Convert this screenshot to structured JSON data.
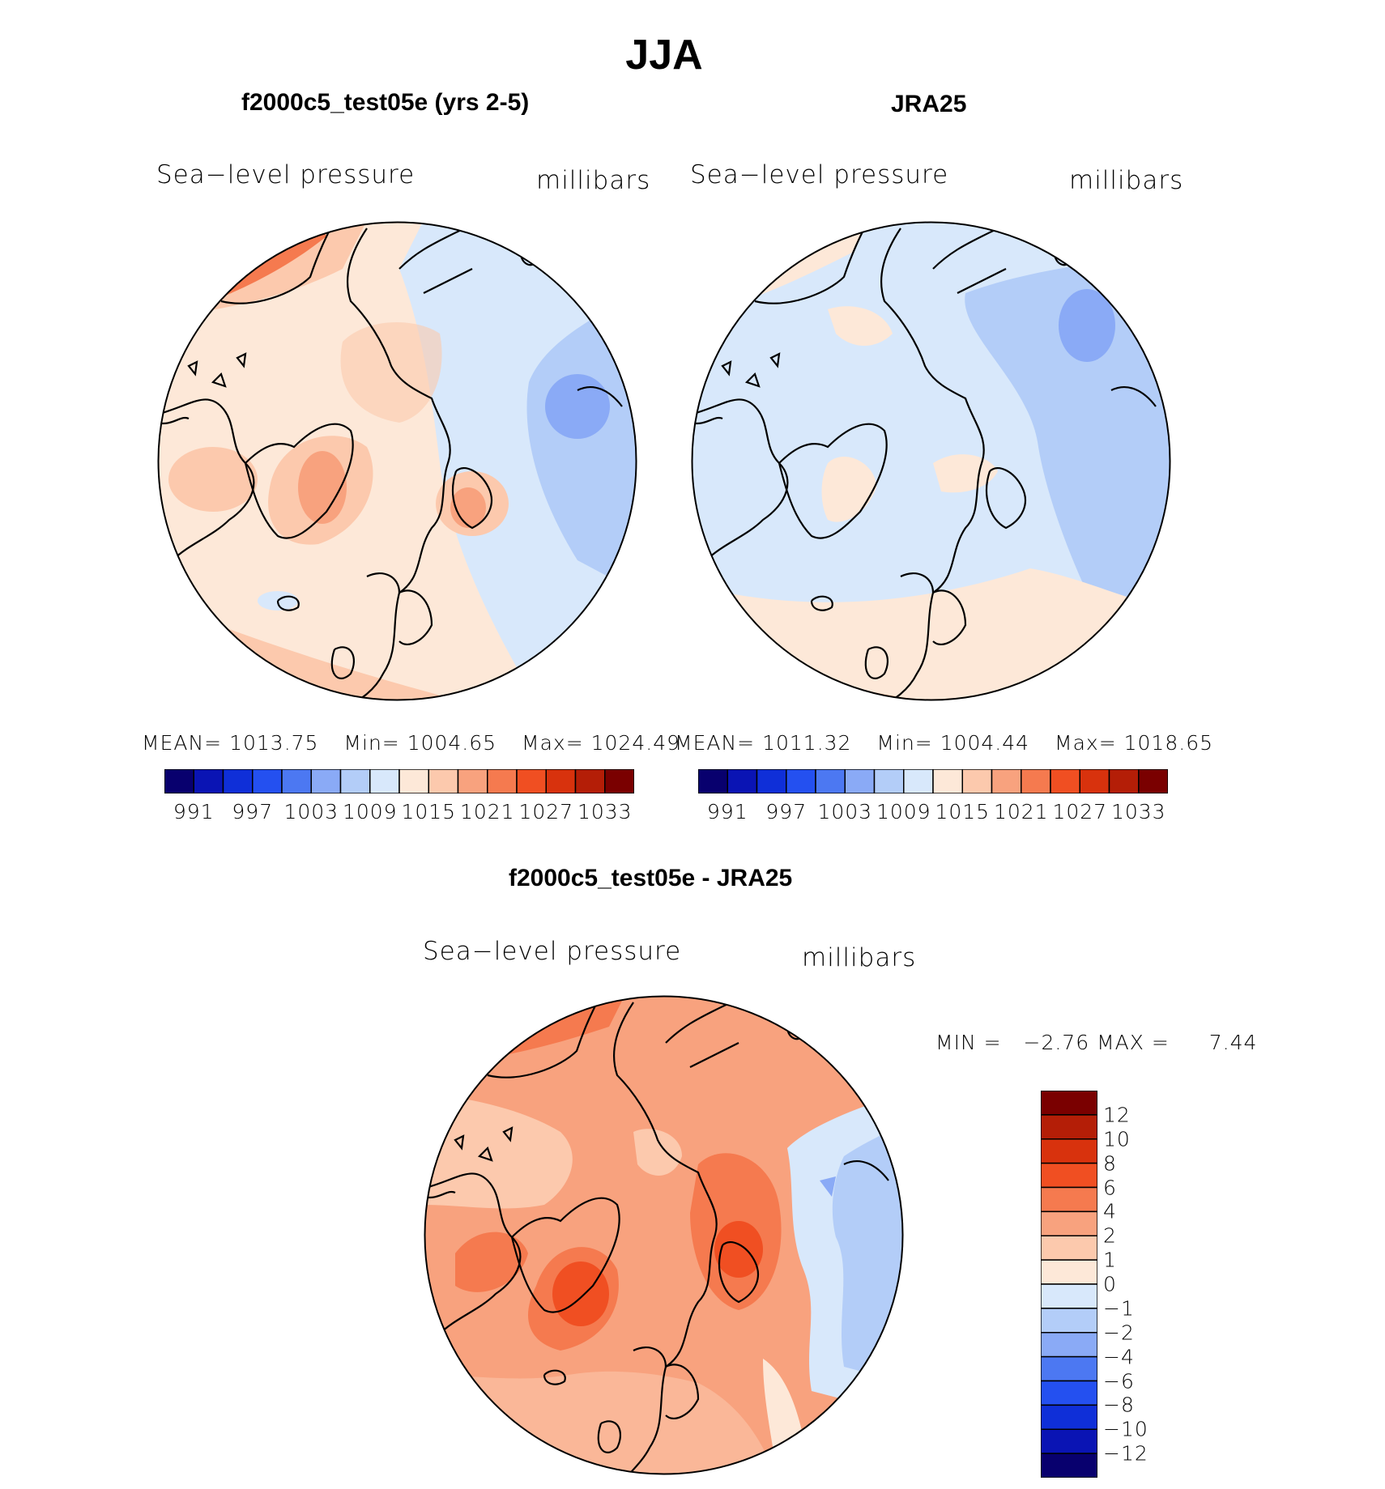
{
  "figure": {
    "title": "JJA",
    "variable": "Sea−level pressure",
    "units": "millibars"
  },
  "panels": [
    {
      "id": "model",
      "title": "f2000c5_test05e (yrs 2-5)",
      "mean_label": "MEAN=",
      "mean": "1013.75",
      "min_label": "Min=",
      "min": "1004.65",
      "max_label": "Max=",
      "max": "1024.49"
    },
    {
      "id": "obs",
      "title": "JRA25",
      "mean_label": "MEAN=",
      "mean": "1011.32",
      "min_label": "Min=",
      "min": "1004.44",
      "max_label": "Max=",
      "max": "1018.65"
    },
    {
      "id": "diff",
      "title": "f2000c5_test05e - JRA25",
      "min_label": "MIN =",
      "min": "−2.76",
      "max_label": "MAX =",
      "max": "7.44"
    }
  ],
  "colorbar_abs": {
    "colors": [
      "#08006e",
      "#0a14b4",
      "#0f2fd8",
      "#2450f0",
      "#4c78f2",
      "#8aaaf6",
      "#b3cdf8",
      "#d8e8fb",
      "#fde8d8",
      "#fcc9ad",
      "#f8a27e",
      "#f57a4f",
      "#f04f22",
      "#d8320d",
      "#b41e07",
      "#7a0000"
    ],
    "tick_labels": [
      "991",
      "997",
      "1003",
      "1009",
      "1015",
      "1021",
      "1027",
      "1033"
    ]
  },
  "colorbar_diff": {
    "colors": [
      "#7a0000",
      "#b41e07",
      "#d8320d",
      "#f04f22",
      "#f57a4f",
      "#f8a27e",
      "#fcc9ad",
      "#fde8d8",
      "#d8e8fb",
      "#b3cdf8",
      "#8aaaf6",
      "#4c78f2",
      "#2450f0",
      "#0f2fd8",
      "#0a14b4",
      "#08006e"
    ],
    "tick_labels": [
      "12",
      "10",
      "8",
      "6",
      "4",
      "2",
      "1",
      "0",
      "−1",
      "−2",
      "−4",
      "−6",
      "−8",
      "−10",
      "−12"
    ]
  }
}
